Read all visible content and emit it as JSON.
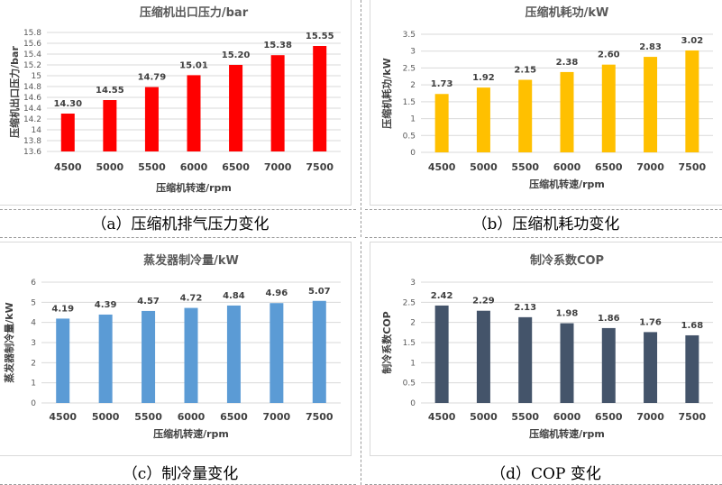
{
  "captions": {
    "a": "（a）压缩机排气压力变化",
    "b": "（b）压缩机耗功变化",
    "c": "（c）制冷量变化",
    "d": "（d）COP 变化"
  },
  "chart_data": [
    {
      "id": "a",
      "type": "bar",
      "title": "压缩机出口压力/bar",
      "xlabel": "压缩机转速/rpm",
      "ylabel": "压缩机出口压力/bar",
      "categories": [
        "4500",
        "5000",
        "5500",
        "6000",
        "6500",
        "7000",
        "7500"
      ],
      "values": [
        14.3,
        14.55,
        14.79,
        15.01,
        15.2,
        15.38,
        15.55
      ],
      "value_labels": [
        "14.30",
        "14.55",
        "14.79",
        "15.01",
        "15.20",
        "15.38",
        "15.55"
      ],
      "ylim": [
        13.6,
        15.8
      ],
      "yticks": [
        "13.6",
        "13.8",
        "14",
        "14.2",
        "14.4",
        "14.6",
        "14.8",
        "15",
        "15.2",
        "15.4",
        "15.6",
        "15.8"
      ],
      "color": "#ff0000",
      "grid": true
    },
    {
      "id": "b",
      "type": "bar",
      "title": "压缩机耗功/kW",
      "xlabel": "压缩机转速/rpm",
      "ylabel": "压缩机耗功/kW",
      "categories": [
        "4500",
        "5000",
        "5500",
        "6000",
        "6500",
        "7000",
        "7500"
      ],
      "values": [
        1.73,
        1.92,
        2.15,
        2.38,
        2.6,
        2.83,
        3.02
      ],
      "value_labels": [
        "1.73",
        "1.92",
        "2.15",
        "2.38",
        "2.60",
        "2.83",
        "3.02"
      ],
      "ylim": [
        0,
        3.5
      ],
      "yticks": [
        "0",
        "0.5",
        "1",
        "1.5",
        "2",
        "2.5",
        "3",
        "3.5"
      ],
      "color": "#ffc000",
      "grid": true
    },
    {
      "id": "c",
      "type": "bar",
      "title": "蒸发器制冷量/kW",
      "xlabel": "压缩机转速/rpm",
      "ylabel": "蒸发器制冷量/kW",
      "categories": [
        "4500",
        "5000",
        "5500",
        "6000",
        "6500",
        "7000",
        "7500"
      ],
      "values": [
        4.19,
        4.39,
        4.57,
        4.72,
        4.84,
        4.96,
        5.07
      ],
      "value_labels": [
        "4.19",
        "4.39",
        "4.57",
        "4.72",
        "4.84",
        "4.96",
        "5.07"
      ],
      "ylim": [
        0,
        6
      ],
      "yticks": [
        "0",
        "1",
        "2",
        "3",
        "4",
        "5",
        "6"
      ],
      "color": "#5b9bd5",
      "grid": true
    },
    {
      "id": "d",
      "type": "bar",
      "title": "制冷系数COP",
      "xlabel": "压缩机转速/rpm",
      "ylabel": "制冷系数COP",
      "categories": [
        "4500",
        "5000",
        "5500",
        "6000",
        "6500",
        "7000",
        "7500"
      ],
      "values": [
        2.42,
        2.29,
        2.13,
        1.98,
        1.86,
        1.76,
        1.68
      ],
      "value_labels": [
        "2.42",
        "2.29",
        "2.13",
        "1.98",
        "1.86",
        "1.76",
        "1.68"
      ],
      "ylim": [
        0,
        3
      ],
      "yticks": [
        "0",
        "0.5",
        "1",
        "1.5",
        "2",
        "2.5",
        "3"
      ],
      "color": "#44546a",
      "grid": true
    }
  ]
}
